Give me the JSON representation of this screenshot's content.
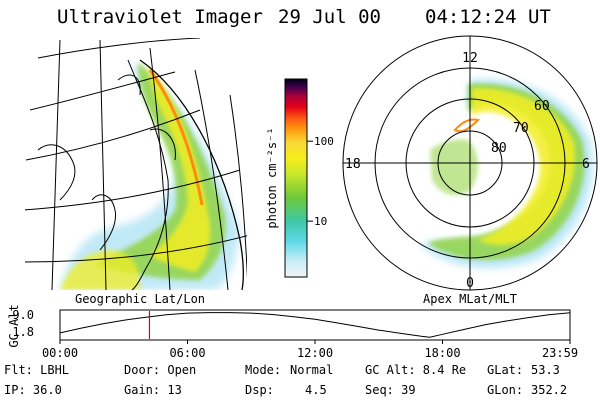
{
  "header": {
    "instrument": "Ultraviolet Imager",
    "date": "29 Jul 00",
    "time": "04:12:24 UT"
  },
  "colors": {
    "aurora_outer": "#8ed8f0",
    "aurora_mid": "#8fd23a",
    "aurora_bright": "#f2ee22",
    "aurora_peak": "#ff8a10",
    "marker": "#dd0000"
  },
  "colorbar": {
    "label": "photon cm⁻²s⁻¹",
    "ticks": [
      "100",
      "10"
    ],
    "tick_values": [
      100,
      10
    ],
    "range": [
      2,
      600
    ],
    "scale": "log"
  },
  "geo_map": {
    "label": "Geographic Lat/Lon"
  },
  "polar_plot": {
    "label": "Apex MLat/MLT",
    "mlt_labels": {
      "top": "12",
      "left": "18",
      "right": "6",
      "bottom": "0"
    },
    "lat_labels": [
      "60",
      "70",
      "80"
    ]
  },
  "altitude_plot": {
    "ylabel": "GC Alt",
    "yticks": [
      "9.0",
      "1.8"
    ],
    "ytick_values": [
      9.0,
      1.8
    ],
    "xticks": [
      "00:00",
      "06:00",
      "12:00",
      "18:00",
      "23:59"
    ],
    "xrange_hours": [
      0,
      24
    ],
    "current_hour": 4.21,
    "orbit_x_hours": [
      0,
      1,
      2,
      3,
      4,
      5,
      6,
      7,
      8,
      9,
      10,
      11,
      12,
      13,
      14,
      15,
      16,
      17,
      17.4,
      18,
      19,
      20,
      21,
      22,
      23,
      24
    ],
    "orbit_y_re": [
      1.8,
      3.5,
      5.0,
      6.3,
      7.3,
      8.2,
      8.8,
      9.0,
      9.0,
      8.8,
      8.3,
      7.5,
      6.6,
      5.4,
      4.1,
      2.8,
      1.7,
      0.6,
      0.3,
      1.3,
      3.0,
      4.7,
      6.0,
      7.2,
      8.2,
      8.9
    ]
  },
  "status": {
    "filter": "Flt: LBHL",
    "door": "Door: Open",
    "mode_label": "Mode:",
    "mode_value": "Normal",
    "gc_alt": "GC Alt: 8.4 Re",
    "glat_label": "GLat:",
    "glat_value": "53.3",
    "ip": "IP: 36.0",
    "gain": "Gain: 13",
    "dsp_label": "Dsp:",
    "dsp_value": "4.5",
    "seq": "Seq: 39",
    "glon_label": "GLon:",
    "glon_value": "352.2"
  }
}
